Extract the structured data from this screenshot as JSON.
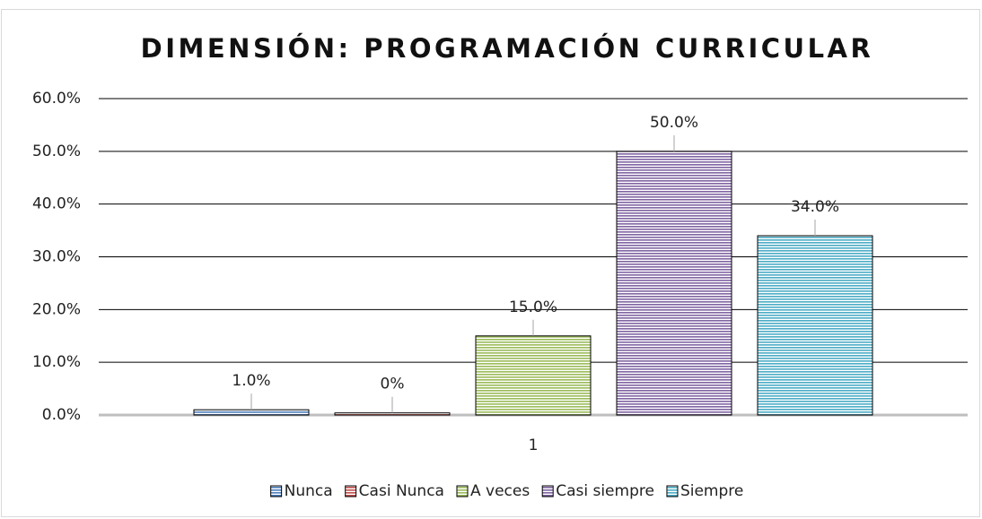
{
  "chart_data": {
    "type": "bar",
    "title": "DIMENSIÓN: PROGRAMACIÓN CURRICULAR",
    "categories": [
      "1"
    ],
    "series": [
      {
        "name": "Nunca",
        "color": "#4a7ebb",
        "values": [
          1.0
        ],
        "value_labels": [
          "1.0%"
        ]
      },
      {
        "name": "Casi Nunca",
        "color": "#c0504d",
        "values": [
          0.4
        ],
        "value_labels": [
          "0%"
        ]
      },
      {
        "name": "A veces",
        "color": "#9bbb59",
        "values": [
          15.0
        ],
        "value_labels": [
          "15.0%"
        ]
      },
      {
        "name": "Casi siempre",
        "color": "#8064a2",
        "values": [
          50.0
        ],
        "value_labels": [
          "50.0%"
        ]
      },
      {
        "name": "Siempre",
        "color": "#4bacc6",
        "values": [
          34.0
        ],
        "value_labels": [
          "34.0%"
        ]
      }
    ],
    "ylim": [
      0,
      60
    ],
    "yticks": [
      {
        "value": 0,
        "label": "0.0%"
      },
      {
        "value": 10,
        "label": "10.0%"
      },
      {
        "value": 20,
        "label": "20.0%"
      },
      {
        "value": 30,
        "label": "30.0%"
      },
      {
        "value": 40,
        "label": "40.0%"
      },
      {
        "value": 50,
        "label": "50.0%"
      },
      {
        "value": 60,
        "label": "60.0%"
      }
    ],
    "grid": true,
    "legend": "bottom"
  }
}
